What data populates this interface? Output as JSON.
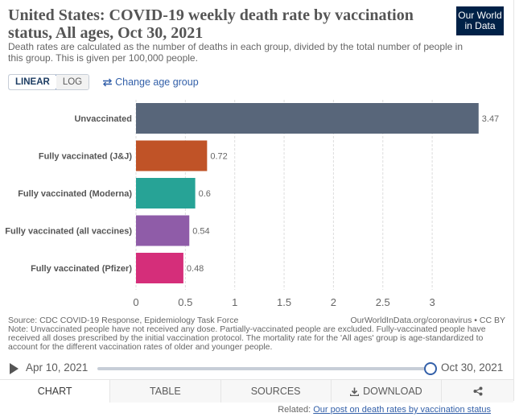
{
  "header": {
    "title": "United States: COVID-19 weekly death rate by vaccination status, All ages, Oct 30, 2021",
    "subtitle": "Death rates are calculated as the number of deaths in each group, divided by the total number of people in this group. This is given per 100,000 people.",
    "logo_line1": "Our World",
    "logo_line2": "in Data"
  },
  "controls": {
    "linear_label": "LINEAR",
    "log_label": "LOG",
    "age_group_label": "Change age group"
  },
  "chart_data": {
    "type": "bar",
    "orientation": "horizontal",
    "categories": [
      "Unvaccinated",
      "Fully vaccinated (J&J)",
      "Fully vaccinated (Moderna)",
      "Fully vaccinated (all vaccines)",
      "Fully vaccinated (Pfizer)"
    ],
    "values": [
      3.47,
      0.72,
      0.6,
      0.54,
      0.48
    ],
    "value_labels": [
      "3.47",
      "0.72",
      "0.6",
      "0.54",
      "0.48"
    ],
    "colors": [
      "#58667a",
      "#c05327",
      "#27a396",
      "#8f5ca8",
      "#d52e7a"
    ],
    "x_ticks": [
      0,
      0.5,
      1,
      1.5,
      2,
      2.5,
      3
    ],
    "x_tick_labels": [
      "0",
      "0.5",
      "1",
      "1.5",
      "2",
      "2.5",
      "3"
    ],
    "xlim": [
      0,
      3.5
    ],
    "grid": true
  },
  "footer": {
    "source": "Source: CDC COVID-19 Response, Epidemiology Task Force",
    "url": "OurWorldInData.org/coronavirus • CC BY",
    "note": "Note: Unvaccinated people have not received any dose. Partially-vaccinated people are excluded. Fully-vaccinated people have received all doses prescribed by the initial vaccination protocol. The mortality rate for the 'All ages' group is age-standardized to account for the different vaccination rates of older and younger people."
  },
  "timeline": {
    "start_label": "Apr 10, 2021",
    "end_label": "Oct 30, 2021",
    "position": 1.0
  },
  "tabs": {
    "chart": "CHART",
    "table": "TABLE",
    "sources": "SOURCES",
    "download": "DOWNLOAD"
  },
  "related": {
    "prefix": "Related:",
    "link": "Our post on death rates by vaccination status"
  }
}
